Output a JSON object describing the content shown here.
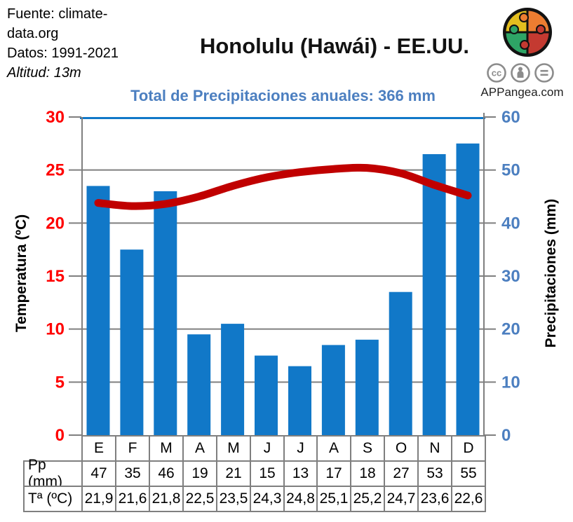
{
  "header": {
    "source_lines": [
      "Fuente: climate-",
      "data.org",
      "Datos: 1991-2021",
      "Altitud: 13m"
    ],
    "brand": "APPangea.com",
    "license_icons": [
      "cc-icon",
      "attribution-icon",
      "no-derivatives-icon"
    ]
  },
  "chart_data": {
    "type": "bar+line",
    "title": "Honolulu (Hawái) - EE.UU.",
    "subtitle": "Total de Precipitaciones anuales: 366 mm",
    "annual_total_mm": 366,
    "categories": [
      "E",
      "F",
      "M",
      "A",
      "M",
      "J",
      "J",
      "A",
      "S",
      "O",
      "N",
      "D"
    ],
    "series": [
      {
        "name": "Pp (mm)",
        "type": "bar",
        "axis": "right",
        "values": [
          47,
          35,
          46,
          19,
          21,
          15,
          13,
          17,
          18,
          27,
          53,
          55
        ],
        "labels": [
          "47",
          "35",
          "46",
          "19",
          "21",
          "15",
          "13",
          "17",
          "18",
          "27",
          "53",
          "55"
        ],
        "color": "#1178c8"
      },
      {
        "name": "Tª (ºC)",
        "type": "line",
        "axis": "left",
        "values": [
          21.9,
          21.6,
          21.8,
          22.5,
          23.5,
          24.3,
          24.8,
          25.1,
          25.2,
          24.7,
          23.6,
          22.6
        ],
        "labels": [
          "21,9",
          "21,6",
          "21,8",
          "22,5",
          "23,5",
          "24,3",
          "24,8",
          "25,1",
          "25,2",
          "24,7",
          "23,6",
          "22,6"
        ],
        "color": "#c00000"
      }
    ],
    "left_axis": {
      "title": "Temperatura (ºC)",
      "ticks": [
        30,
        25,
        20,
        15,
        10,
        5,
        0
      ],
      "range": [
        0,
        30
      ],
      "label_color": "#ff0000"
    },
    "right_axis": {
      "title": "Precipitaciones (mm)",
      "ticks": [
        60,
        50,
        40,
        30,
        20,
        10,
        0
      ],
      "range": [
        0,
        60
      ],
      "label_color": "#4c7fc0"
    },
    "grid": true,
    "grid_color": "#7f7f7f",
    "plot_top_border_color": "#1178c8",
    "legend": "none"
  }
}
